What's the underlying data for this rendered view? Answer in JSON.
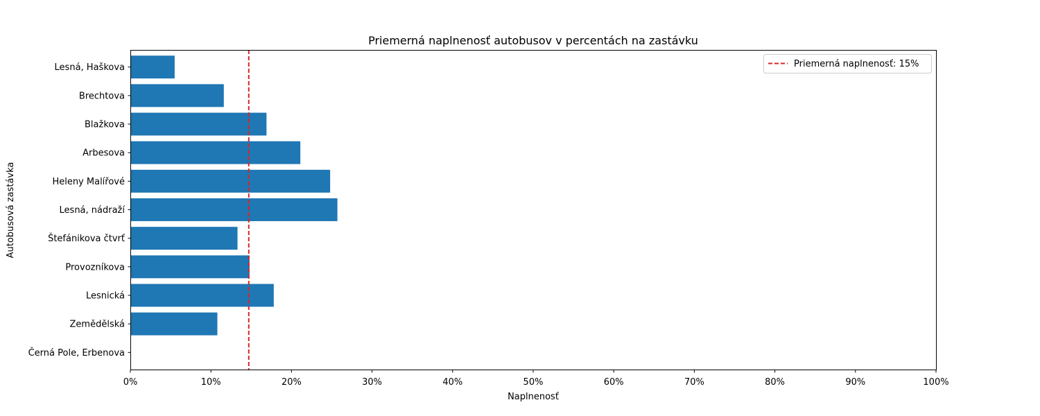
{
  "chart_data": {
    "type": "bar",
    "orientation": "horizontal",
    "title": "Priemerná naplnenosť autobusov v percentách na zastávku",
    "xlabel": "Naplnenosť",
    "ylabel": "Autobusová zastávka",
    "xlim": [
      0,
      100
    ],
    "xticks": [
      0,
      10,
      20,
      30,
      40,
      50,
      60,
      70,
      80,
      90,
      100
    ],
    "xtick_suffix": "%",
    "categories": [
      "Černá Pole, Erbenova",
      "Zemědělská",
      "Lesnická",
      "Provozníkova",
      "Štefánikova čtvrť",
      "Lesná, nádraží",
      "Heleny Malířové",
      "Arbesova",
      "Blažkova",
      "Brechtova",
      "Lesná, Haškova"
    ],
    "values": [
      0,
      10.8,
      17.8,
      14.8,
      13.3,
      25.7,
      24.8,
      21.1,
      16.9,
      11.6,
      5.5
    ],
    "bar_color": "#1f77b4",
    "grid": false,
    "reference_line": {
      "value": 14.7,
      "color": "#d62728",
      "style": "dashed",
      "label": "Priemerná naplnenosť: 15%"
    },
    "legend": {
      "position": "top-right"
    }
  }
}
